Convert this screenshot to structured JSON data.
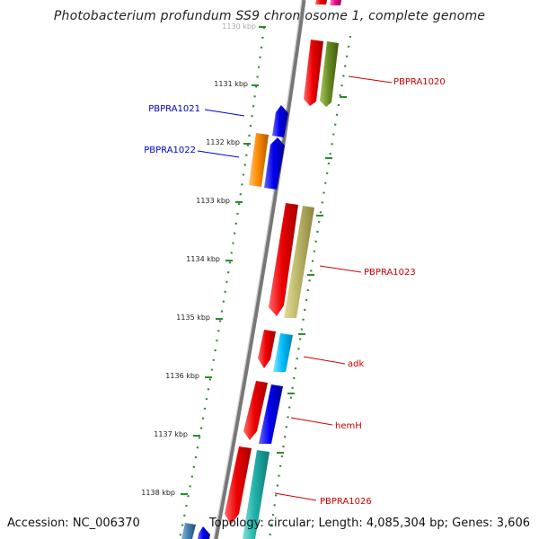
{
  "title": "Photobacterium profundum SS9 chromosome 1, complete genome",
  "footer": {
    "accession": "Accession: NC_006370",
    "summary": "Topology: circular; Length: 4,085,304 bp; Genes: 3,606"
  },
  "kbp_ticks": [
    "1130 kbp",
    "1131 kbp",
    "1132 kbp",
    "1133 kbp",
    "1134 kbp",
    "1135 kbp",
    "1136 kbp",
    "1137 kbp",
    "1138 kbp"
  ],
  "gene_labels": [
    {
      "text": "PBPRA1020",
      "color": "#cc0000"
    },
    {
      "text": "PBPRA1021",
      "color": "#0000cc"
    },
    {
      "text": "PBPRA1022",
      "color": "#0000cc"
    },
    {
      "text": "PBPRA1023",
      "color": "#cc0000"
    },
    {
      "text": "adk",
      "color": "#cc0000"
    },
    {
      "text": "hemH",
      "color": "#cc0000"
    },
    {
      "text": "PBPRA1026",
      "color": "#cc0000"
    }
  ],
  "colors": {
    "backbone": "#888888",
    "tick_dots": "#2e8b2e",
    "red": "#ee0000",
    "blue": "#0000ee",
    "orange": "#ff8c00",
    "olive": "#6b8e23",
    "khaki": "#bdb76b",
    "skyblue": "#00bfff",
    "teal": "#20b2aa",
    "steelblue": "#4682b4",
    "magenta": "#ee1188"
  }
}
